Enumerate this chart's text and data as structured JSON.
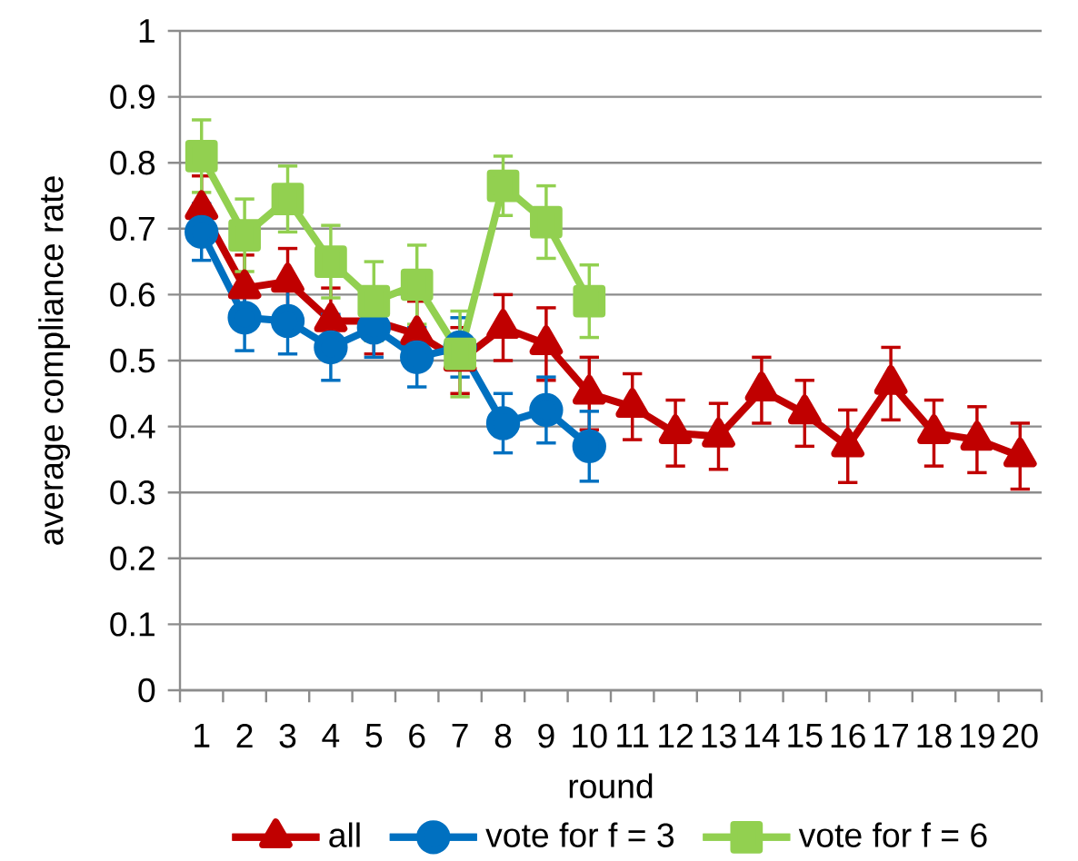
{
  "chart_data": {
    "type": "line",
    "xlabel": "round",
    "ylabel": "average compliance rate",
    "categories": [
      "1",
      "2",
      "3",
      "4",
      "5",
      "6",
      "7",
      "8",
      "9",
      "10",
      "11",
      "12",
      "13",
      "14",
      "15",
      "16",
      "17",
      "18",
      "19",
      "20"
    ],
    "ylim": [
      0,
      1
    ],
    "yticks": [
      0,
      0.1,
      0.2,
      0.3,
      0.4,
      0.5,
      0.6,
      0.7,
      0.8,
      0.9,
      1
    ],
    "grid": "y",
    "legend": "bottom",
    "series": [
      {
        "name": "all",
        "color": "#c00000",
        "marker": "triangle",
        "values": [
          0.73,
          0.61,
          0.62,
          0.56,
          0.56,
          0.54,
          0.5,
          0.55,
          0.525,
          0.45,
          0.43,
          0.39,
          0.385,
          0.455,
          0.42,
          0.37,
          0.465,
          0.39,
          0.38,
          0.355
        ],
        "errors": [
          0.05,
          0.05,
          0.05,
          0.05,
          0.05,
          0.05,
          0.05,
          0.05,
          0.055,
          0.055,
          0.05,
          0.05,
          0.05,
          0.05,
          0.05,
          0.055,
          0.055,
          0.05,
          0.05,
          0.05
        ]
      },
      {
        "name": "vote for f = 3",
        "color": "#0070c0",
        "marker": "circle",
        "values": [
          0.695,
          0.565,
          0.56,
          0.52,
          0.55,
          0.505,
          0.52,
          0.405,
          0.425,
          0.37,
          null,
          null,
          null,
          null,
          null,
          null,
          null,
          null,
          null,
          null
        ],
        "errors": [
          0.043,
          0.05,
          0.05,
          0.05,
          0.045,
          0.045,
          0.045,
          0.045,
          0.05,
          0.053,
          null,
          null,
          null,
          null,
          null,
          null,
          null,
          null,
          null,
          null
        ]
      },
      {
        "name": "vote for f = 6",
        "color": "#92d050",
        "marker": "square",
        "values": [
          0.81,
          0.69,
          0.745,
          0.65,
          0.59,
          0.615,
          0.51,
          0.765,
          0.71,
          0.59,
          null,
          null,
          null,
          null,
          null,
          null,
          null,
          null,
          null,
          null
        ],
        "errors": [
          0.055,
          0.055,
          0.05,
          0.055,
          0.06,
          0.06,
          0.065,
          0.045,
          0.055,
          0.055,
          null,
          null,
          null,
          null,
          null,
          null,
          null,
          null,
          null,
          null
        ]
      }
    ]
  }
}
